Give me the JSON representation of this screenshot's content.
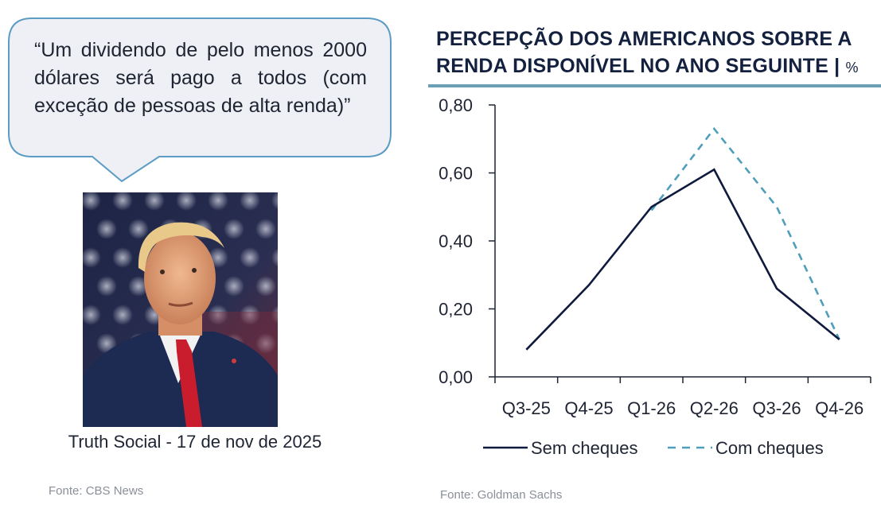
{
  "quote": {
    "text": "“Um dividendo de pelo menos 2000 dólares será pago a todos (com exceção de pessoas de alta renda)”"
  },
  "photo": {
    "caption": "Truth Social - 17 de nov de 2025",
    "source": "Fonte: CBS News"
  },
  "colors": {
    "bubble_border": "#5c9cc4",
    "bubble_fill": "#eef0f5",
    "series_solid": "#0f1a3d",
    "series_dashed": "#4f9ebb",
    "title_rule": "#6b9fb6"
  },
  "chart_data": {
    "type": "line",
    "title": "PERCEPÇÃO DOS AMERICANOS SOBRE A RENDA DISPONÍVEL NO ANO SEGUINTE |",
    "title_unit": "%",
    "categories": [
      "Q3-25",
      "Q4-25",
      "Q1-26",
      "Q2-26",
      "Q3-26",
      "Q4-26"
    ],
    "y_ticks": [
      "0,00",
      "0,20",
      "0,40",
      "0,60",
      "0,80"
    ],
    "y_tick_values": [
      0,
      0.2,
      0.4,
      0.6,
      0.8
    ],
    "ylim": [
      0,
      0.8
    ],
    "grid": false,
    "legend_position": "bottom",
    "series": [
      {
        "name": "Sem cheques",
        "style": "solid",
        "x": [
          0,
          1,
          2,
          3,
          4,
          5
        ],
        "values": [
          0.08,
          0.27,
          0.5,
          0.61,
          0.26,
          0.11
        ]
      },
      {
        "name": "Com cheques",
        "style": "dashed",
        "x": [
          2,
          3,
          4,
          5
        ],
        "values": [
          0.49,
          0.73,
          0.5,
          0.11
        ]
      }
    ],
    "source": "Fonte: Goldman Sachs"
  }
}
